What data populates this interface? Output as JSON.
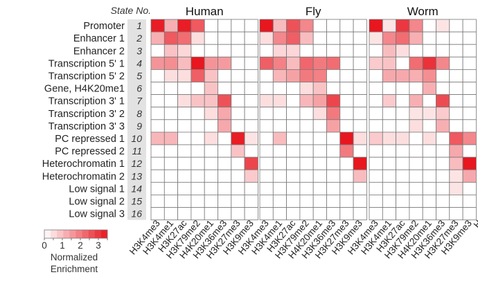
{
  "chart_data": {
    "type": "heatmap",
    "title": "",
    "state_header": "State No.",
    "states": [
      {
        "num": "1",
        "label": "Promoter"
      },
      {
        "num": "2",
        "label": "Enhancer 1"
      },
      {
        "num": "3",
        "label": "Enhancer 2"
      },
      {
        "num": "4",
        "label": "Transcription 5' 1"
      },
      {
        "num": "5",
        "label": "Transcription 5' 2"
      },
      {
        "num": "6",
        "label": "Gene, H4K20me1"
      },
      {
        "num": "7",
        "label": "Transcription 3' 1"
      },
      {
        "num": "8",
        "label": "Transcription 3' 2"
      },
      {
        "num": "9",
        "label": "Transcription 3' 3"
      },
      {
        "num": "10",
        "label": "PC repressed 1"
      },
      {
        "num": "11",
        "label": "PC repressed 2"
      },
      {
        "num": "12",
        "label": "Heterochromatin 1"
      },
      {
        "num": "13",
        "label": "Heterochromatin 2"
      },
      {
        "num": "14",
        "label": "Low signal 1"
      },
      {
        "num": "15",
        "label": "Low signal 2"
      },
      {
        "num": "16",
        "label": "Low signal 3"
      }
    ],
    "marks": [
      "H3K4me3",
      "H3K4me1",
      "H3K27ac",
      "H3K79me2",
      "H4K20me1",
      "H3K36me3",
      "H3K27me3",
      "H3K9me3"
    ],
    "panels": [
      {
        "name": "Human",
        "values": [
          [
            3.4,
            1.2,
            3.4,
            2.5,
            0,
            0,
            0,
            0
          ],
          [
            1.2,
            2.5,
            2.2,
            0.5,
            0,
            0,
            0,
            0
          ],
          [
            0,
            0.9,
            0.6,
            0,
            0,
            0,
            0,
            0
          ],
          [
            1.6,
            1.7,
            1.0,
            3.5,
            1.6,
            1.5,
            0,
            0
          ],
          [
            0,
            0.5,
            0.5,
            2.4,
            0.9,
            0,
            0,
            0
          ],
          [
            0,
            0,
            0,
            0,
            0.9,
            0,
            0,
            0
          ],
          [
            0,
            0,
            0.5,
            0.9,
            0.9,
            2.6,
            0,
            0
          ],
          [
            0,
            0,
            0,
            0,
            0.5,
            1.3,
            0,
            0
          ],
          [
            0,
            0,
            0,
            0,
            0,
            1.3,
            0,
            0
          ],
          [
            1.1,
            1.1,
            0,
            0,
            0.5,
            0,
            3.4,
            0.4
          ],
          [
            0,
            0,
            0,
            0,
            0,
            0,
            0.9,
            0
          ],
          [
            0,
            0,
            0,
            0,
            0,
            0,
            0,
            2.8
          ],
          [
            0,
            0,
            0,
            0,
            0,
            0,
            0,
            0.8
          ],
          [
            0,
            0,
            0,
            0,
            0,
            0,
            0,
            0
          ],
          [
            0,
            0,
            0,
            0,
            0,
            0,
            0,
            0
          ],
          [
            0,
            0,
            0,
            0,
            0,
            0,
            0,
            0
          ]
        ]
      },
      {
        "name": "Fly",
        "values": [
          [
            3.5,
            1.0,
            2.6,
            1.8,
            0,
            0,
            0,
            0
          ],
          [
            0.5,
            1.8,
            2.4,
            1.0,
            0,
            0,
            0,
            0
          ],
          [
            0,
            0.6,
            0.6,
            0,
            0,
            0,
            0,
            0
          ],
          [
            2.4,
            1.9,
            1.0,
            2.3,
            2.0,
            2.2,
            0,
            0
          ],
          [
            0,
            1.1,
            1.4,
            2.0,
            1.9,
            0,
            0,
            0
          ],
          [
            0,
            0,
            0,
            0.5,
            0.9,
            0,
            0,
            0
          ],
          [
            0.5,
            0.5,
            0,
            1.1,
            1.4,
            2.8,
            0,
            0
          ],
          [
            0,
            0,
            0,
            0,
            0.5,
            2.0,
            0,
            0
          ],
          [
            0,
            0,
            0,
            0,
            0,
            1.4,
            0,
            0
          ],
          [
            0,
            1.0,
            0,
            0,
            0,
            0,
            3.5,
            0.5
          ],
          [
            0,
            0,
            0,
            0,
            0,
            0,
            2.0,
            0
          ],
          [
            0,
            0,
            0,
            0,
            0,
            0,
            0,
            3.5
          ],
          [
            0,
            0,
            0,
            0,
            0,
            0,
            0,
            1.0
          ],
          [
            0,
            0,
            0,
            0,
            0,
            0,
            0,
            0
          ],
          [
            0,
            0,
            0,
            0,
            0,
            0,
            0,
            0
          ],
          [
            0,
            0,
            0,
            0,
            0,
            0,
            0,
            0
          ]
        ]
      },
      {
        "name": "Worm",
        "values": [
          [
            3.5,
            0.4,
            3.0,
            1.8,
            0,
            0.4,
            0,
            0
          ],
          [
            0.4,
            1.8,
            2.2,
            1.2,
            0,
            0,
            0,
            0
          ],
          [
            0,
            1.0,
            0.5,
            0,
            0,
            0,
            0,
            0
          ],
          [
            0.8,
            0.9,
            0,
            2.2,
            3.1,
            1.8,
            0,
            0
          ],
          [
            0,
            1.3,
            1.3,
            1.2,
            1.7,
            0,
            0,
            0
          ],
          [
            0,
            0,
            0,
            0,
            1.2,
            0,
            0,
            0
          ],
          [
            0,
            0.8,
            0,
            1.2,
            0,
            2.7,
            0,
            0
          ],
          [
            0,
            0,
            0,
            0.4,
            0.4,
            0.8,
            0,
            0
          ],
          [
            0,
            0,
            0,
            0.5,
            0,
            1.2,
            0,
            0
          ],
          [
            0.8,
            0.5,
            0.5,
            0,
            0.5,
            0,
            2.5,
            1.8
          ],
          [
            0,
            0,
            0,
            0,
            0,
            0,
            1.3,
            0
          ],
          [
            0,
            0,
            0,
            0,
            0,
            0,
            1.0,
            3.5
          ],
          [
            0,
            0,
            0,
            0,
            0,
            0,
            0.4,
            1.3
          ],
          [
            0,
            0,
            0,
            0,
            0,
            0,
            0.4,
            0
          ],
          [
            0,
            0,
            0,
            0,
            0,
            0,
            0,
            0
          ],
          [
            0,
            0,
            0,
            0,
            0,
            0,
            0,
            0
          ]
        ]
      }
    ],
    "partial_label_right_edge": "H",
    "colorscale": {
      "min": 0,
      "max": 3.5,
      "low_color": "#ffffff",
      "high_color": "#e8161f"
    },
    "legend": {
      "title_line1": "Normalized",
      "title_line2": "Enrichment",
      "ticks": [
        "0",
        "1",
        "2",
        "3"
      ],
      "tick_values": [
        0,
        1,
        2,
        3
      ],
      "placement": "bottom-left"
    },
    "grid": true
  }
}
